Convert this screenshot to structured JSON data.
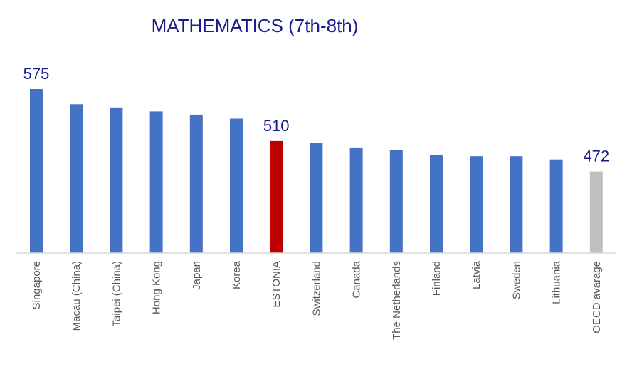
{
  "chart_data": {
    "type": "bar",
    "title": "MATHEMATICS (7th-8th)",
    "xlabel": "",
    "ylabel": "",
    "categories": [
      "Singapore",
      "Macau (China)",
      "Taipei (China)",
      "Hong Kong",
      "Japan",
      "Korea",
      "ESTONIA",
      "Switzerland",
      "Canada",
      "The Netherlands",
      "Finland",
      "Latvia",
      "Sweden",
      "Lithuania",
      "OECD avarage"
    ],
    "values": [
      575,
      556,
      552,
      547,
      543,
      538,
      510,
      508,
      502,
      499,
      493,
      491,
      491,
      487,
      472
    ],
    "data_labels": [
      {
        "category": "Singapore",
        "text": "575"
      },
      {
        "category": "ESTONIA",
        "text": "510"
      },
      {
        "category": "OECD avarage",
        "text": "472"
      }
    ],
    "ylim": [
      370,
      580
    ],
    "grid": false,
    "legend": "none",
    "colors": {
      "default": "#4472c4",
      "highlight": "#c00000",
      "average": "#bfbfbf",
      "title": "#1a1a8c",
      "tick_label": "#595959",
      "axis": "#d9d9d9"
    },
    "bar_colors": [
      "default",
      "default",
      "default",
      "default",
      "default",
      "default",
      "highlight",
      "default",
      "default",
      "default",
      "default",
      "default",
      "default",
      "default",
      "average"
    ]
  }
}
